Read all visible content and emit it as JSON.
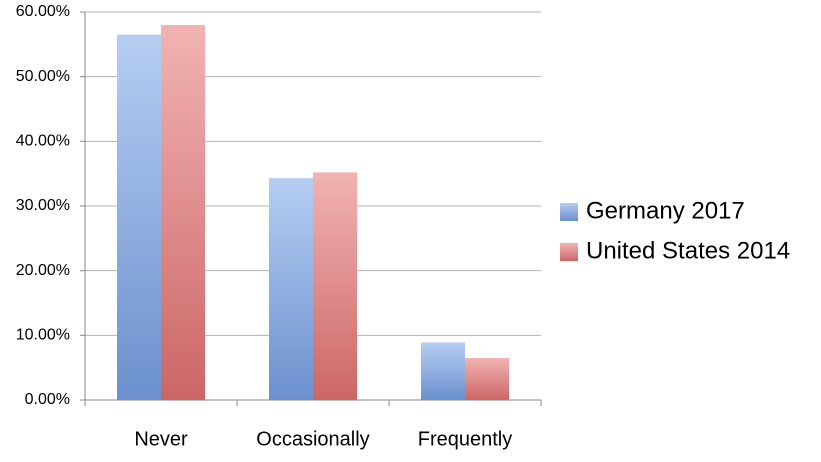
{
  "chart_data": {
    "type": "bar",
    "categories": [
      "Never",
      "Occasionally",
      "Frequently"
    ],
    "series": [
      {
        "name": "Germany 2017",
        "color": "#7aa4ea",
        "values": [
          56.5,
          34.3,
          8.9
        ]
      },
      {
        "name": "United States 2014",
        "color": "#e87474",
        "values": [
          58.0,
          35.2,
          6.5
        ]
      }
    ],
    "ylim": [
      0,
      60
    ],
    "yticks": [
      {
        "value": 0,
        "label": "0.00%"
      },
      {
        "value": 10,
        "label": "10.00%"
      },
      {
        "value": 20,
        "label": "20.00%"
      },
      {
        "value": 30,
        "label": "30.00%"
      },
      {
        "value": 40,
        "label": "40.00%"
      },
      {
        "value": 50,
        "label": "50.00%"
      },
      {
        "value": 60,
        "label": "60.00%"
      }
    ],
    "grid": true,
    "legend": "right"
  }
}
